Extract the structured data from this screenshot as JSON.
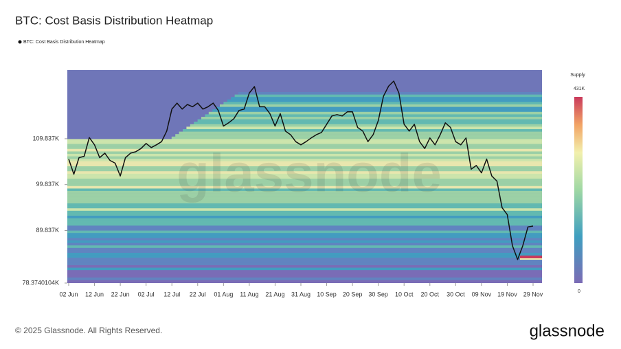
{
  "chart_data": {
    "type": "line",
    "title": "BTC: Cost Basis Distribution Heatmap",
    "watermark": "glassnode",
    "footer": "© 2025 Glassnode. All Rights Reserved.",
    "brand": "glassnode",
    "x": [
      "02 Jun",
      "04 Jun",
      "06 Jun",
      "08 Jun",
      "10 Jun",
      "12 Jun",
      "14 Jun",
      "16 Jun",
      "18 Jun",
      "20 Jun",
      "22 Jun",
      "24 Jun",
      "26 Jun",
      "28 Jun",
      "30 Jun",
      "02 Jul",
      "04 Jul",
      "06 Jul",
      "08 Jul",
      "10 Jul",
      "12 Jul",
      "14 Jul",
      "16 Jul",
      "18 Jul",
      "20 Jul",
      "22 Jul",
      "24 Jul",
      "26 Jul",
      "28 Jul",
      "30 Jul",
      "01 Aug",
      "03 Aug",
      "05 Aug",
      "07 Aug",
      "09 Aug",
      "11 Aug",
      "13 Aug",
      "15 Aug",
      "17 Aug",
      "19 Aug",
      "21 Aug",
      "23 Aug",
      "25 Aug",
      "27 Aug",
      "29 Aug",
      "31 Aug",
      "02 Sep",
      "04 Sep",
      "06 Sep",
      "08 Sep",
      "10 Sep",
      "12 Sep",
      "14 Sep",
      "16 Sep",
      "18 Sep",
      "20 Sep",
      "22 Sep",
      "24 Sep",
      "26 Sep",
      "28 Sep",
      "30 Sep",
      "02 Oct",
      "04 Oct",
      "06 Oct",
      "08 Oct",
      "10 Oct",
      "12 Oct",
      "14 Oct",
      "16 Oct",
      "18 Oct",
      "20 Oct",
      "22 Oct",
      "24 Oct",
      "26 Oct",
      "28 Oct",
      "30 Oct",
      "01 Nov",
      "03 Nov",
      "05 Nov",
      "07 Nov",
      "09 Nov",
      "11 Nov",
      "13 Nov",
      "15 Nov",
      "17 Nov",
      "19 Nov",
      "21 Nov",
      "23 Nov",
      "25 Nov",
      "27 Nov",
      "29 Nov"
    ],
    "xticks": [
      "02 Jun",
      "12 Jun",
      "22 Jun",
      "02 Jul",
      "12 Jul",
      "22 Jul",
      "01 Aug",
      "11 Aug",
      "21 Aug",
      "31 Aug",
      "10 Sep",
      "20 Sep",
      "30 Sep",
      "10 Oct",
      "20 Oct",
      "30 Oct",
      "09 Nov",
      "19 Nov",
      "29 Nov"
    ],
    "series": [
      {
        "name": "BTC: Cost Basis Distribution Heatmap",
        "color": "#111111",
        "values": [
          105.4,
          102.1,
          105.7,
          106,
          110.1,
          108.5,
          105.7,
          106.7,
          105.1,
          104.5,
          101.7,
          105.7,
          106.7,
          107,
          107.7,
          108.8,
          107.9,
          108.5,
          109.2,
          111.5,
          116.3,
          117.6,
          116.3,
          117.3,
          116.8,
          117.6,
          116.3,
          116.8,
          117.6,
          116,
          112.6,
          113.3,
          114.2,
          116,
          116.3,
          119.8,
          121.2,
          116.8,
          116.8,
          115.3,
          112.6,
          115.3,
          111.5,
          110.7,
          109.2,
          108.5,
          109.2,
          110,
          110.7,
          111.2,
          113,
          114.8,
          115.1,
          114.8,
          115.7,
          115.7,
          112.3,
          111.5,
          109.2,
          110.7,
          113.8,
          119.1,
          121.3,
          122.4,
          119.8,
          113,
          111.5,
          113,
          109.2,
          107.7,
          110,
          108.5,
          110.7,
          113.3,
          112.3,
          109.2,
          108.5,
          110,
          103.2,
          104,
          102.4,
          105.4,
          101.7,
          100.6,
          94.8,
          93.3,
          86.5,
          83.5,
          86.5,
          90.6,
          90.8
        ]
      }
    ],
    "ylim": [
      78.3740104,
      124.8
    ],
    "yticks": [
      {
        "value": 78.3740104,
        "label": "78.3740104K"
      },
      {
        "value": 89.837,
        "label": "89.837K"
      },
      {
        "value": 99.837,
        "label": "99.837K"
      },
      {
        "value": 109.837,
        "label": "109.837K"
      }
    ],
    "colorbar": {
      "label": "Supply",
      "lim": [
        0,
        431000
      ],
      "ticks": [
        {
          "value": 431000,
          "label": "431K"
        },
        0
      ]
    }
  }
}
